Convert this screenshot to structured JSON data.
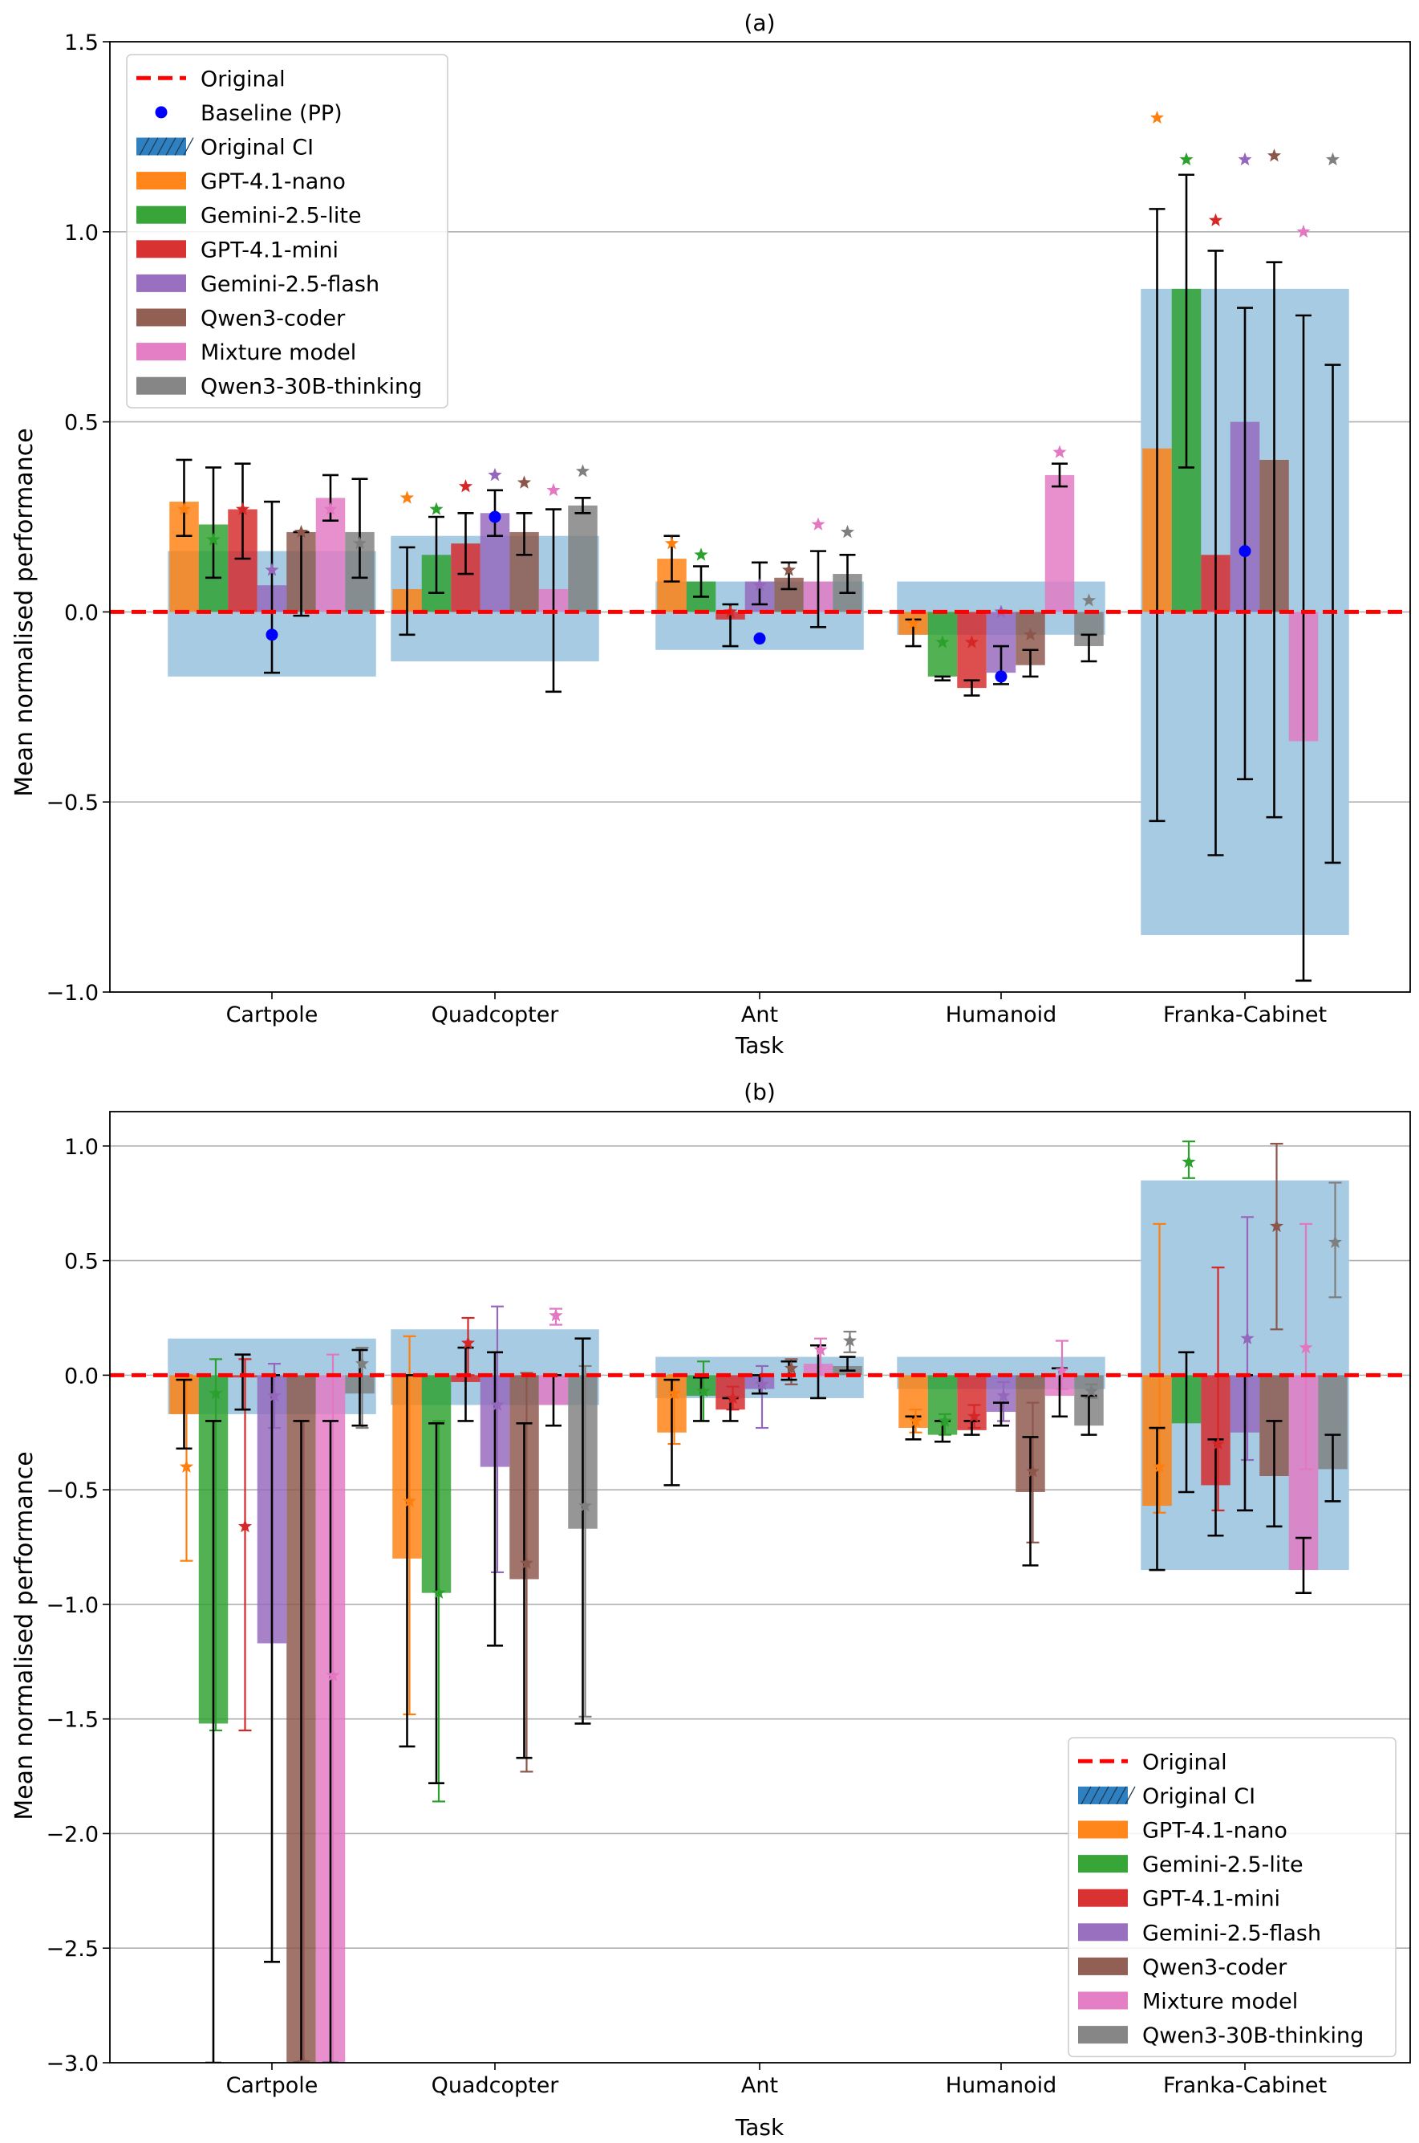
{
  "colors": {
    "GPT-4.1-nano": "#ff7f0e",
    "Gemini-2.5-lite": "#2ca02c",
    "GPT-4.1-mini": "#d62728",
    "Gemini-2.5-flash": "#9467bd",
    "Qwen3-coder": "#8c564b",
    "Mixture model": "#e377c2",
    "Qwen3-30B-thinking": "#7f7f7f",
    "original": "#ff0000",
    "ci": "#a6cbe3",
    "baseline": "#0000ff"
  },
  "chart_data": [
    {
      "type": "bar",
      "title": "(a)",
      "xlabel": "Task",
      "ylabel": "Mean normalised performance",
      "ylim": [
        -1.0,
        1.5
      ],
      "yticks": [
        -1.0,
        -0.5,
        0.0,
        0.5,
        1.0,
        1.5
      ],
      "ytick_labels": [
        "−1.0",
        "−0.5",
        "0.0",
        "0.5",
        "1.0",
        "1.5"
      ],
      "grid": true,
      "legend_position": "top-left",
      "legend": [
        "Original",
        "Baseline (PP)",
        "Original CI",
        "GPT-4.1-nano",
        "Gemini-2.5-lite",
        "GPT-4.1-mini",
        "Gemini-2.5-flash",
        "Qwen3-coder",
        "Mixture model",
        "Qwen3-30B-thinking"
      ],
      "categories": [
        "Cartpole",
        "Quadcopter",
        "Ant",
        "Humanoid",
        "Franka-Cabinet"
      ],
      "original": 0.0,
      "ci": [
        [
          -0.17,
          0.16
        ],
        [
          -0.13,
          0.2
        ],
        [
          -0.1,
          0.08
        ],
        [
          -0.06,
          0.08
        ],
        [
          -0.85,
          0.85
        ]
      ],
      "baseline": [
        -0.06,
        0.25,
        -0.07,
        -0.17,
        0.16
      ],
      "series": [
        {
          "name": "GPT-4.1-nano",
          "values": [
            0.29,
            0.06,
            0.14,
            -0.06,
            0.43
          ],
          "err_low": [
            0.2,
            -0.06,
            0.08,
            -0.09,
            -0.55
          ],
          "err_high": [
            0.4,
            0.17,
            0.2,
            -0.02,
            1.06
          ],
          "star": [
            0.27,
            0.3,
            0.18,
            -0.03,
            1.3
          ]
        },
        {
          "name": "Gemini-2.5-lite",
          "values": [
            0.23,
            0.15,
            0.08,
            -0.17,
            0.85
          ],
          "err_low": [
            0.09,
            0.05,
            0.04,
            -0.18,
            0.38
          ],
          "err_high": [
            0.38,
            0.25,
            0.12,
            -0.17,
            1.15
          ],
          "star": [
            0.19,
            0.27,
            0.15,
            -0.08,
            1.19
          ]
        },
        {
          "name": "GPT-4.1-mini",
          "values": [
            0.27,
            0.18,
            -0.02,
            -0.2,
            0.15
          ],
          "err_low": [
            0.14,
            0.1,
            -0.09,
            -0.22,
            -0.64
          ],
          "err_high": [
            0.39,
            0.26,
            0.02,
            -0.18,
            0.95
          ],
          "star": [
            0.27,
            0.33,
            0.0,
            -0.08,
            1.03
          ]
        },
        {
          "name": "Gemini-2.5-flash",
          "values": [
            0.07,
            0.26,
            0.08,
            -0.16,
            0.5
          ],
          "err_low": [
            -0.16,
            0.2,
            0.02,
            -0.19,
            -0.44
          ],
          "err_high": [
            0.29,
            0.32,
            0.13,
            -0.09,
            0.8
          ],
          "star": [
            0.11,
            0.36,
            0.07,
            0.0,
            1.19
          ]
        },
        {
          "name": "Qwen3-coder",
          "values": [
            0.21,
            0.21,
            0.09,
            -0.14,
            0.4
          ],
          "err_low": [
            -0.01,
            0.15,
            0.06,
            -0.17,
            -0.54
          ],
          "err_high": [
            0.21,
            0.26,
            0.13,
            -0.1,
            0.92
          ],
          "star": [
            0.21,
            0.34,
            0.11,
            -0.06,
            1.2
          ]
        },
        {
          "name": "Mixture model",
          "values": [
            0.3,
            0.06,
            0.08,
            0.36,
            -0.34
          ],
          "err_low": [
            0.24,
            -0.21,
            -0.04,
            0.33,
            -0.97
          ],
          "err_high": [
            0.36,
            0.27,
            0.16,
            0.39,
            0.78
          ],
          "star": [
            0.27,
            0.32,
            0.23,
            0.42,
            1.0
          ]
        },
        {
          "name": "Qwen3-30B-thinking",
          "values": [
            0.21,
            0.28,
            0.1,
            -0.09,
            0.0
          ],
          "err_low": [
            0.09,
            0.26,
            0.05,
            -0.13,
            -0.66
          ],
          "err_high": [
            0.35,
            0.3,
            0.15,
            -0.06,
            0.65
          ],
          "star": [
            0.18,
            0.37,
            0.21,
            0.03,
            1.19
          ]
        }
      ]
    },
    {
      "type": "bar",
      "title": "(b)",
      "xlabel": "Task",
      "ylabel": "Mean normalised performance",
      "ylim": [
        -3.0,
        1.15
      ],
      "yticks": [
        -3.0,
        -2.5,
        -2.0,
        -1.5,
        -1.0,
        -0.5,
        0.0,
        0.5,
        1.0
      ],
      "ytick_labels": [
        "−3.0",
        "−2.5",
        "−2.0",
        "−1.5",
        "−1.0",
        "−0.5",
        "0.0",
        "0.5",
        "1.0"
      ],
      "grid": true,
      "legend_position": "bottom-right",
      "legend": [
        "Original",
        "Original CI",
        "GPT-4.1-nano",
        "Gemini-2.5-lite",
        "GPT-4.1-mini",
        "Gemini-2.5-flash",
        "Qwen3-coder",
        "Mixture model",
        "Qwen3-30B-thinking"
      ],
      "categories": [
        "Cartpole",
        "Quadcopter",
        "Ant",
        "Humanoid",
        "Franka-Cabinet"
      ],
      "original": 0.0,
      "ci": [
        [
          -0.17,
          0.16
        ],
        [
          -0.13,
          0.2
        ],
        [
          -0.1,
          0.08
        ],
        [
          -0.06,
          0.08
        ],
        [
          -0.85,
          0.85
        ]
      ],
      "series": [
        {
          "name": "GPT-4.1-nano",
          "values": [
            -0.17,
            -0.8,
            -0.25,
            -0.23,
            -0.57
          ],
          "err_low": [
            -0.32,
            -1.62,
            -0.48,
            -0.28,
            -0.85
          ],
          "err_high": [
            -0.02,
            0.0,
            -0.02,
            -0.18,
            -0.23
          ],
          "star": [
            -0.4,
            -0.55,
            -0.08,
            -0.2,
            -0.4
          ],
          "ci_low": [
            -0.81,
            -1.48,
            -0.3,
            -0.25,
            -0.6
          ],
          "ci_high": [
            0.0,
            0.17,
            0.0,
            -0.15,
            0.66
          ]
        },
        {
          "name": "Gemini-2.5-lite",
          "values": [
            -1.52,
            -0.95,
            -0.09,
            -0.26,
            -0.21
          ],
          "err_low": [
            -3.0,
            -1.78,
            -0.2,
            -0.29,
            -0.51
          ],
          "err_high": [
            -0.2,
            -0.21,
            -0.01,
            -0.2,
            0.1
          ],
          "star": [
            -0.08,
            -0.95,
            -0.07,
            -0.2,
            0.93
          ],
          "ci_low": [
            -1.55,
            -1.86,
            -0.2,
            -0.26,
            0.86
          ],
          "ci_high": [
            0.07,
            -0.2,
            0.06,
            -0.17,
            1.02
          ]
        },
        {
          "name": "GPT-4.1-mini",
          "values": [
            -0.01,
            -0.03,
            -0.15,
            -0.24,
            -0.48
          ],
          "err_low": [
            -0.15,
            -0.2,
            -0.2,
            -0.26,
            -0.7
          ],
          "err_high": [
            0.09,
            0.12,
            -0.1,
            -0.2,
            -0.28
          ],
          "star": [
            -0.66,
            0.14,
            -0.1,
            -0.18,
            -0.3
          ],
          "ci_low": [
            -1.55,
            0.0,
            -0.15,
            -0.23,
            -0.59
          ],
          "ci_high": [
            0.07,
            0.25,
            -0.05,
            -0.13,
            0.47
          ]
        },
        {
          "name": "Gemini-2.5-flash",
          "values": [
            -1.17,
            -0.4,
            -0.06,
            -0.16,
            -0.25
          ],
          "err_low": [
            -2.56,
            -1.18,
            -0.08,
            -0.22,
            -0.59
          ],
          "err_high": [
            0.0,
            0.1,
            0.0,
            -0.12,
            0.0
          ],
          "star": [
            -0.09,
            -0.13,
            -0.04,
            -0.09,
            0.16
          ],
          "ci_low": [
            -0.23,
            -0.86,
            -0.23,
            -0.2,
            -0.37
          ],
          "ci_high": [
            0.05,
            0.3,
            0.04,
            -0.03,
            0.69
          ]
        },
        {
          "name": "Qwen3-coder",
          "values": [
            -3.0,
            -0.89,
            0.0,
            -0.51,
            -0.44
          ],
          "err_low": [
            -3.0,
            -1.67,
            -0.02,
            -0.83,
            -0.66
          ],
          "err_high": [
            -0.2,
            -0.21,
            0.06,
            -0.27,
            -0.2
          ],
          "star": [
            -3.0,
            -0.82,
            0.03,
            -0.42,
            0.65
          ],
          "ci_low": [
            -3.0,
            -1.73,
            -0.04,
            -0.73,
            0.2
          ],
          "ci_high": [
            -0.2,
            0.01,
            0.07,
            -0.12,
            1.01
          ]
        },
        {
          "name": "Mixture model",
          "values": [
            -3.0,
            -0.13,
            0.05,
            -0.09,
            -0.85
          ],
          "err_low": [
            -3.0,
            -0.22,
            -0.1,
            -0.18,
            -0.95
          ],
          "err_high": [
            -0.2,
            0.0,
            0.13,
            0.03,
            -0.71
          ],
          "star": [
            -1.31,
            0.26,
            0.11,
            0.02,
            0.12
          ],
          "ci_low": [
            -3.0,
            0.22,
            0.0,
            -0.06,
            -0.41
          ],
          "ci_high": [
            0.09,
            0.29,
            0.16,
            0.15,
            0.66
          ]
        },
        {
          "name": "Qwen3-30B-thinking",
          "values": [
            -0.08,
            -0.67,
            0.04,
            -0.22,
            -0.41
          ],
          "err_low": [
            -0.22,
            -1.52,
            0.02,
            -0.26,
            -0.55
          ],
          "err_high": [
            0.11,
            0.16,
            0.08,
            -0.09,
            -0.26
          ],
          "star": [
            0.05,
            -0.57,
            0.15,
            -0.07,
            0.58
          ],
          "ci_low": [
            -0.23,
            -1.49,
            0.1,
            -0.1,
            0.34
          ],
          "ci_high": [
            0.12,
            0.04,
            0.19,
            -0.04,
            0.84
          ]
        }
      ]
    }
  ]
}
